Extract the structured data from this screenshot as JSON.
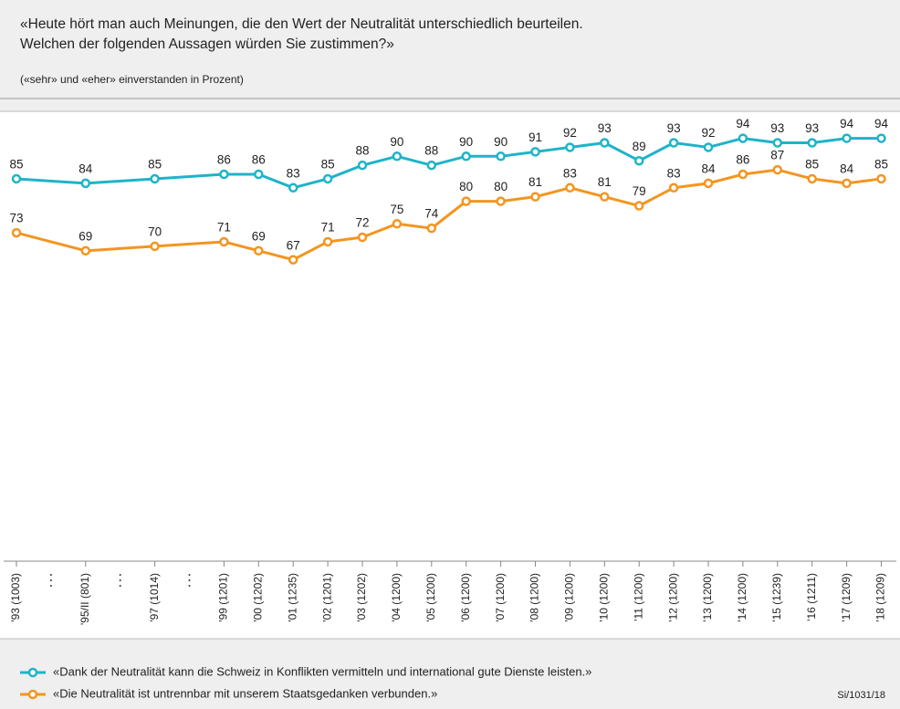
{
  "chart_data": {
    "type": "line",
    "title": [
      "«Heute hört man auch Meinungen, die den Wert der Neutralität unterschiedlich beurteilen.",
      "Welchen der folgenden Aussagen würden Sie zustimmen?»"
    ],
    "subtitle": "(«sehr» und «eher» einverstanden in Prozent)",
    "source": "Si/1031/18",
    "categories": [
      "'93 (1003)",
      "'95/II (801)",
      "'97 (1014)",
      "'99 (1201)",
      "'00 (1202)",
      "'01 (1235)",
      "'02 (1201)",
      "'03 (1202)",
      "'04 (1200)",
      "'05 (1200)",
      "'06 (1200)",
      "'07 (1200)",
      "'08 (1200)",
      "'09 (1200)",
      "'10 (1200)",
      "'11 (1200)",
      "'12 (1200)",
      "'13 (1200)",
      "'14 (1200)",
      "'15 (1239)",
      "'16 (1211)",
      "'17 (1209)",
      "'18 (1209)"
    ],
    "series": [
      {
        "name": "«Dank der Neutralität kann die Schweiz in Konflikten vermitteln und international gute Dienste leisten.»",
        "color": "#1eb4c8",
        "values": [
          85,
          84,
          85,
          86,
          86,
          83,
          85,
          88,
          90,
          88,
          90,
          90,
          91,
          92,
          93,
          89,
          93,
          92,
          94,
          93,
          93,
          94,
          94
        ]
      },
      {
        "name": "«Die Neutralität ist untrennbar mit unserem Staatsgedanken verbunden.»",
        "color": "#f39520",
        "values": [
          73,
          69,
          70,
          71,
          69,
          67,
          71,
          72,
          75,
          74,
          80,
          80,
          81,
          83,
          81,
          79,
          83,
          84,
          86,
          87,
          85,
          84,
          85
        ]
      }
    ],
    "ylim": [
      0,
      100
    ]
  }
}
